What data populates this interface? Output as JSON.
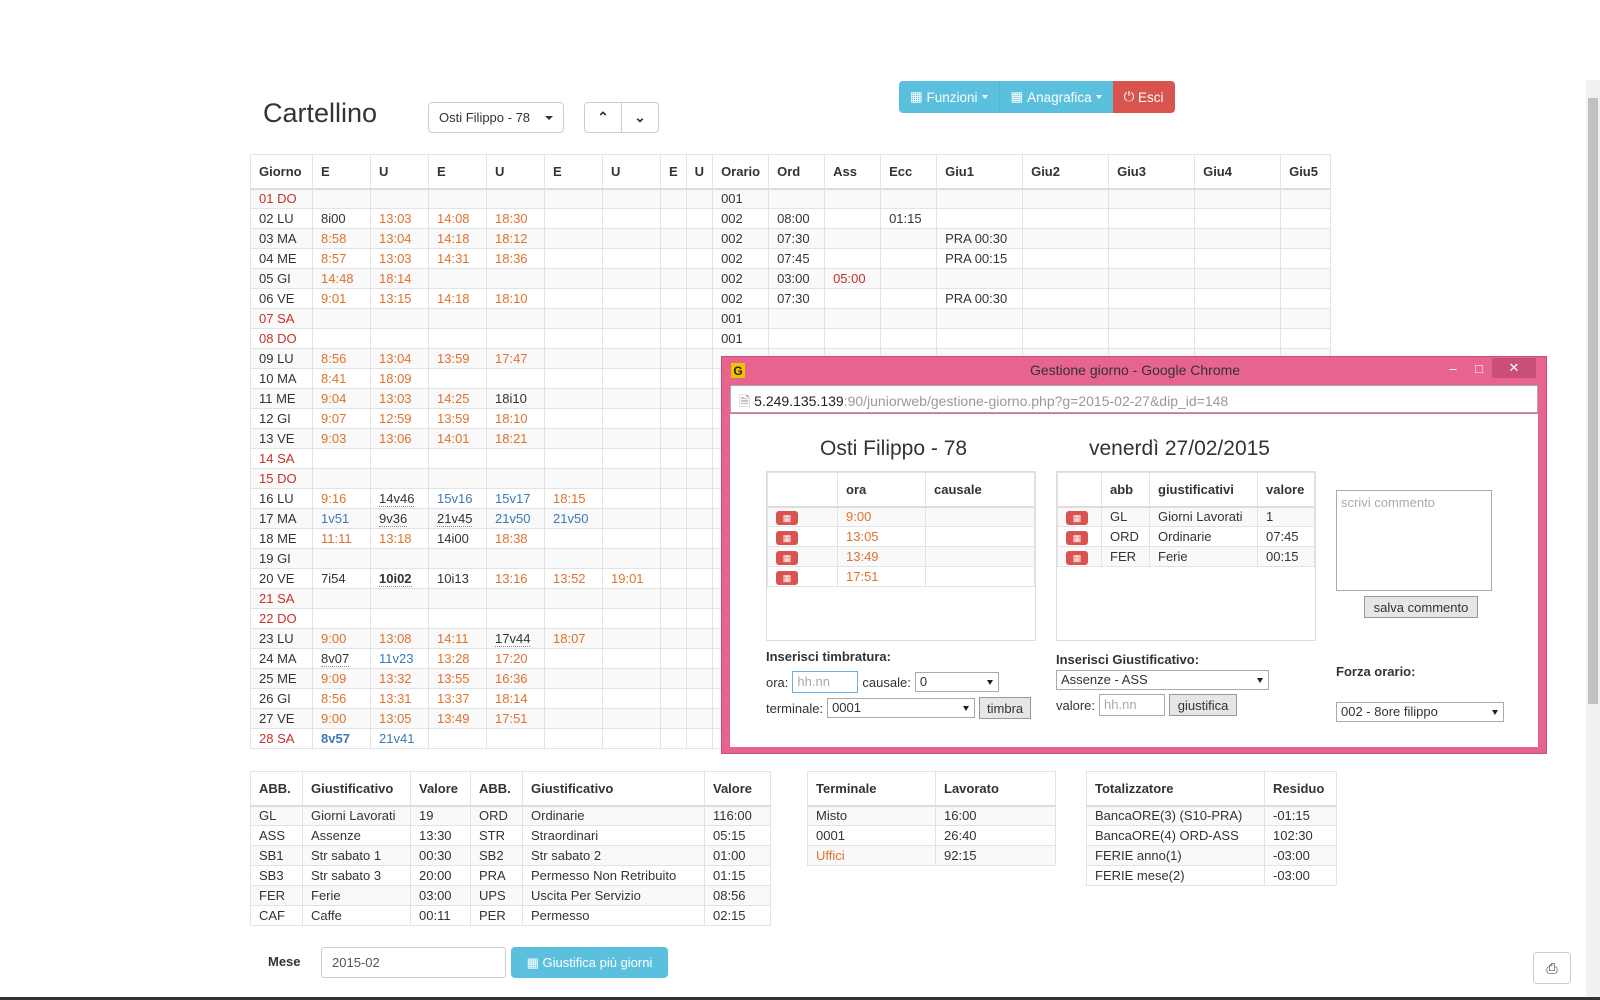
{
  "header": {
    "title": "Cartellino",
    "employee_select": "Osti Filippo - 78",
    "nav": {
      "funzioni": "Funzioni",
      "anagrafica": "Anagrafica",
      "esci": "Esci"
    }
  },
  "main_table": {
    "headers": [
      "Giorno",
      "E",
      "U",
      "E",
      "U",
      "E",
      "U",
      "E",
      "U",
      "Orario",
      "Ord",
      "Ass",
      "Ecc",
      "Giu1",
      "Giu2",
      "Giu3",
      "Giu4",
      "Giu5"
    ],
    "rows": [
      {
        "giorno": "01 DO",
        "red": true,
        "p": [
          "",
          "",
          "",
          "",
          "",
          "",
          "",
          ""
        ],
        "orario": "001",
        "ord": "",
        "ass": "",
        "ecc": "",
        "giu1": ""
      },
      {
        "giorno": "02 LU",
        "p": [
          "8i00",
          "13:03",
          "14:08",
          "18:30",
          "",
          "",
          "",
          ""
        ],
        "orario": "002",
        "ord": "08:00",
        "ass": "",
        "ecc": "01:15",
        "giu1": ""
      },
      {
        "giorno": "03 MA",
        "p": [
          "8:58",
          "13:04",
          "14:18",
          "18:12",
          "",
          "",
          "",
          ""
        ],
        "orario": "002",
        "ord": "07:30",
        "ass": "",
        "ecc": "",
        "giu1": "PRA 00:30"
      },
      {
        "giorno": "04 ME",
        "p": [
          "8:57",
          "13:03",
          "14:31",
          "18:36",
          "",
          "",
          "",
          ""
        ],
        "orario": "002",
        "ord": "07:45",
        "ass": "",
        "ecc": "",
        "giu1": "PRA 00:15"
      },
      {
        "giorno": "05 GI",
        "p": [
          "14:48",
          "18:14",
          "",
          "",
          "",
          "",
          "",
          ""
        ],
        "orario": "002",
        "ord": "03:00",
        "ass": "05:00",
        "ecc": "",
        "giu1": ""
      },
      {
        "giorno": "06 VE",
        "p": [
          "9:01",
          "13:15",
          "14:18",
          "18:10",
          "",
          "",
          "",
          ""
        ],
        "orario": "002",
        "ord": "07:30",
        "ass": "",
        "ecc": "",
        "giu1": "PRA 00:30"
      },
      {
        "giorno": "07 SA",
        "red": true,
        "p": [
          "",
          "",
          "",
          "",
          "",
          "",
          "",
          ""
        ],
        "orario": "001",
        "ord": "",
        "ass": "",
        "ecc": "",
        "giu1": ""
      },
      {
        "giorno": "08 DO",
        "red": true,
        "p": [
          "",
          "",
          "",
          "",
          "",
          "",
          "",
          ""
        ],
        "orario": "001",
        "ord": "",
        "ass": "",
        "ecc": "",
        "giu1": ""
      },
      {
        "giorno": "09 LU",
        "p": [
          "8:56",
          "13:04",
          "13:59",
          "17:47",
          "",
          "",
          "",
          ""
        ]
      },
      {
        "giorno": "10 MA",
        "p": [
          "8:41",
          "18:09",
          "",
          "",
          "",
          "",
          "",
          ""
        ]
      },
      {
        "giorno": "11 ME",
        "p": [
          "9:04",
          "13:03",
          "14:25",
          "18i10",
          "",
          "",
          "",
          ""
        ]
      },
      {
        "giorno": "12 GI",
        "p": [
          "9:07",
          "12:59",
          "13:59",
          "18:10",
          "",
          "",
          "",
          ""
        ]
      },
      {
        "giorno": "13 VE",
        "p": [
          "9:03",
          "13:06",
          "14:01",
          "18:21",
          "",
          "",
          "",
          ""
        ]
      },
      {
        "giorno": "14 SA",
        "red": true,
        "p": [
          "",
          "",
          "",
          "",
          "",
          "",
          "",
          ""
        ]
      },
      {
        "giorno": "15 DO",
        "red": true,
        "p": [
          "",
          "",
          "",
          "",
          "",
          "",
          "",
          ""
        ]
      },
      {
        "giorno": "16 LU",
        "p": [
          "9:16",
          "14v46",
          "15v16",
          "15v17",
          "18:15",
          "",
          "",
          ""
        ]
      },
      {
        "giorno": "17 MA",
        "p": [
          "1v51",
          "9v36",
          "21v45",
          "21v50",
          "21v50",
          "",
          "",
          ""
        ]
      },
      {
        "giorno": "18 ME",
        "p": [
          "11:11",
          "13:18",
          "14i00",
          "18:38",
          "",
          "",
          "",
          ""
        ]
      },
      {
        "giorno": "19 GI",
        "p": [
          "",
          "",
          "",
          "",
          "",
          "",
          "",
          ""
        ]
      },
      {
        "giorno": "20 VE",
        "p": [
          "7i54",
          "10i02",
          "10i13",
          "13:16",
          "13:52",
          "19:01",
          "",
          ""
        ]
      },
      {
        "giorno": "21 SA",
        "red": true,
        "p": [
          "",
          "",
          "",
          "",
          "",
          "",
          "",
          ""
        ]
      },
      {
        "giorno": "22 DO",
        "red": true,
        "p": [
          "",
          "",
          "",
          "",
          "",
          "",
          "",
          ""
        ]
      },
      {
        "giorno": "23 LU",
        "p": [
          "9:00",
          "13:08",
          "14:11",
          "17v44",
          "18:07",
          "",
          "",
          ""
        ]
      },
      {
        "giorno": "24 MA",
        "p": [
          "8v07",
          "11v23",
          "13:28",
          "17:20",
          "",
          "",
          "",
          ""
        ]
      },
      {
        "giorno": "25 ME",
        "p": [
          "9:09",
          "13:32",
          "13:55",
          "16:36",
          "",
          "",
          "",
          ""
        ]
      },
      {
        "giorno": "26 GI",
        "p": [
          "8:56",
          "13:31",
          "13:37",
          "18:14",
          "",
          "",
          "",
          ""
        ]
      },
      {
        "giorno": "27 VE",
        "p": [
          "9:00",
          "13:05",
          "13:49",
          "17:51",
          "",
          "",
          "",
          ""
        ]
      },
      {
        "giorno": "28 SA",
        "red": true,
        "p": [
          "8v57",
          "21v41",
          "",
          "",
          "",
          "",
          "",
          ""
        ]
      }
    ]
  },
  "giust_table": {
    "headers": [
      "ABB.",
      "Giustificativo",
      "Valore",
      "ABB.",
      "Giustificativo",
      "Valore"
    ],
    "rows": [
      [
        "GL",
        "Giorni Lavorati",
        "19",
        "ORD",
        "Ordinarie",
        "116:00"
      ],
      [
        "ASS",
        "Assenze",
        "13:30",
        "STR",
        "Straordinari",
        "05:15"
      ],
      [
        "SB1",
        "Str sabato 1",
        "00:30",
        "SB2",
        "Str sabato 2",
        "01:00"
      ],
      [
        "SB3",
        "Str sabato 3",
        "20:00",
        "PRA",
        "Permesso Non Retribuito",
        "01:15"
      ],
      [
        "FER",
        "Ferie",
        "03:00",
        "UPS",
        "Uscita Per Servizio",
        "08:56"
      ],
      [
        "CAF",
        "Caffe",
        "00:11",
        "PER",
        "Permesso",
        "02:15"
      ]
    ]
  },
  "terminal_table": {
    "headers": [
      "Terminale",
      "Lavorato"
    ],
    "rows": [
      [
        "Misto",
        "16:00"
      ],
      [
        "0001",
        "26:40"
      ],
      [
        "Uffici",
        "92:15"
      ]
    ]
  },
  "total_table": {
    "headers": [
      "Totalizzatore",
      "Residuo"
    ],
    "rows": [
      [
        "BancaORE(3) (S10-PRA)",
        "-01:15"
      ],
      [
        "BancaORE(4) ORD-ASS",
        "102:30"
      ],
      [
        "FERIE anno(1)",
        "-03:00"
      ],
      [
        "FERIE mese(2)",
        "-03:00"
      ]
    ]
  },
  "footer": {
    "mese_label": "Mese",
    "mese_value": "2015-02",
    "giustifica_btn": "Giustifica più giorni"
  },
  "popup": {
    "title": "Gestione giorno - Google Chrome",
    "url_host": "5.249.135.139",
    "url_rest": ":90/juniorweb/gestione-giorno.php?g=2015-02-27&dip_id=148",
    "employee": "Osti Filippo - 78",
    "date": "venerdì 27/02/2015",
    "timb_headers": [
      "ora",
      "causale"
    ],
    "timbrature": [
      "9:00",
      "13:05",
      "13:49",
      "17:51"
    ],
    "giust_headers": [
      "abb",
      "giustificativi",
      "valore"
    ],
    "giustificativi": [
      [
        "GL",
        "Giorni Lavorati",
        "1"
      ],
      [
        "ORD",
        "Ordinarie",
        "07:45"
      ],
      [
        "FER",
        "Ferie",
        "00:15"
      ]
    ],
    "comment_placeholder": "scrivi commento",
    "salva_btn": "salva commento",
    "ins_timb_label": "Inserisci timbratura:",
    "ora_label": "ora:",
    "ora_placeholder": "hh.nn",
    "causale_label": "causale:",
    "causale_value": "0",
    "terminale_label": "terminale:",
    "terminale_value": "0001",
    "timbra_btn": "timbra",
    "ins_giust_label": "Inserisci Giustificativo:",
    "giust_select": "Assenze - ASS",
    "valore_label": "valore:",
    "valore_placeholder": "hh.nn",
    "giustifica_btn": "giustifica",
    "forza_label": "Forza orario:",
    "forza_value": "002 - 8ore filippo"
  }
}
